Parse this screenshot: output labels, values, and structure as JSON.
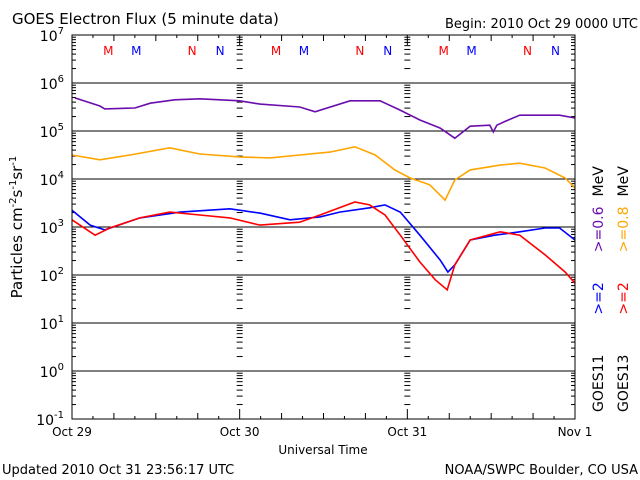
{
  "chart_data": {
    "type": "line",
    "title": "GOES Electron Flux (5 minute data)",
    "begin_label": "Begin: 2010 Oct 29 0000 UTC",
    "xlabel": "Universal Time",
    "ylabel": "Particles cm-2s-1sr-1",
    "ylabel_parts": {
      "base": "Particles cm",
      "e1": "-2",
      "s": "s",
      "e2": "-1",
      "sr": "sr",
      "e3": "-1"
    },
    "yscale": "log",
    "ylim_log10": [
      -1,
      7
    ],
    "y_ticks": [
      {
        "base": "10",
        "exp": "7"
      },
      {
        "base": "10",
        "exp": "6"
      },
      {
        "base": "10",
        "exp": "5"
      },
      {
        "base": "10",
        "exp": "4"
      },
      {
        "base": "10",
        "exp": "3"
      },
      {
        "base": "10",
        "exp": "2"
      },
      {
        "base": "10",
        "exp": "1"
      },
      {
        "base": "10",
        "exp": "0"
      },
      {
        "base": "10",
        "exp": "-1"
      }
    ],
    "xlim_hours": [
      0,
      72
    ],
    "x_ticks": [
      {
        "label": "Oct 29",
        "hour": 0
      },
      {
        "label": "Oct 30",
        "hour": 24
      },
      {
        "label": "Oct 31",
        "hour": 48
      },
      {
        "label": "Nov 1",
        "hour": 72
      }
    ],
    "threshold_log10": 3,
    "markers": [
      {
        "label": "M",
        "hour": 5.2,
        "color": "#ff0000"
      },
      {
        "label": "M",
        "hour": 9.2,
        "color": "#0000ff"
      },
      {
        "label": "N",
        "hour": 17.2,
        "color": "#ff0000"
      },
      {
        "label": "N",
        "hour": 21.2,
        "color": "#0000ff"
      },
      {
        "label": "M",
        "hour": 29.2,
        "color": "#ff0000"
      },
      {
        "label": "M",
        "hour": 33.2,
        "color": "#0000ff"
      },
      {
        "label": "N",
        "hour": 41.2,
        "color": "#ff0000"
      },
      {
        "label": "N",
        "hour": 45.2,
        "color": "#0000ff"
      },
      {
        "label": "M",
        "hour": 53.2,
        "color": "#ff0000"
      },
      {
        "label": "M",
        "hour": 57.2,
        "color": "#0000ff"
      },
      {
        "label": "N",
        "hour": 65.2,
        "color": "#ff0000"
      },
      {
        "label": "N",
        "hour": 69.2,
        "color": "#0000ff"
      }
    ],
    "series": [
      {
        "name": "GOES11 >=0.6 MeV",
        "satellite": "GOES11",
        "energy": ">=0.6",
        "color": "#6a0dad",
        "points": [
          [
            0.4,
            5.69
          ],
          [
            4.0,
            5.52
          ],
          [
            4.7,
            5.46
          ],
          [
            9.0,
            5.48
          ],
          [
            11.2,
            5.58
          ],
          [
            14.7,
            5.65
          ],
          [
            18.3,
            5.67
          ],
          [
            24,
            5.63
          ],
          [
            26.9,
            5.56
          ],
          [
            32.6,
            5.5
          ],
          [
            34.8,
            5.4
          ],
          [
            39.8,
            5.63
          ],
          [
            44.1,
            5.63
          ],
          [
            46.9,
            5.44
          ],
          [
            49.8,
            5.23
          ],
          [
            52.7,
            5.06
          ],
          [
            54.8,
            4.85
          ],
          [
            57.0,
            5.1
          ],
          [
            59.8,
            5.12
          ],
          [
            60.3,
            4.98
          ],
          [
            60.8,
            5.12
          ],
          [
            62,
            5.2
          ],
          [
            64.1,
            5.33
          ],
          [
            69.8,
            5.33
          ],
          [
            72,
            5.27
          ]
        ]
      },
      {
        "name": "GOES13 >=0.8 MeV",
        "satellite": "GOES13",
        "energy": ">=0.8",
        "color": "#ffa500",
        "points": [
          [
            0,
            4.5
          ],
          [
            4.0,
            4.4
          ],
          [
            8.3,
            4.5
          ],
          [
            14.0,
            4.65
          ],
          [
            18.3,
            4.52
          ],
          [
            24,
            4.46
          ],
          [
            28.3,
            4.44
          ],
          [
            32.6,
            4.5
          ],
          [
            36.9,
            4.56
          ],
          [
            40.5,
            4.67
          ],
          [
            43.4,
            4.5
          ],
          [
            46.2,
            4.19
          ],
          [
            48.4,
            4.02
          ],
          [
            51.2,
            3.88
          ],
          [
            53.4,
            3.56
          ],
          [
            54.8,
            3.98
          ],
          [
            57.0,
            4.19
          ],
          [
            61.3,
            4.29
          ],
          [
            64.1,
            4.33
          ],
          [
            67.7,
            4.23
          ],
          [
            70.6,
            4.02
          ],
          [
            72,
            3.81
          ]
        ]
      },
      {
        "name": "GOES11 >=2 MeV",
        "satellite": "GOES11",
        "energy": ">=2",
        "color": "#0000ff",
        "points": [
          [
            0,
            3.35
          ],
          [
            2.6,
            3.04
          ],
          [
            4.7,
            2.94
          ],
          [
            9.7,
            3.19
          ],
          [
            15.5,
            3.31
          ],
          [
            22.6,
            3.38
          ],
          [
            26.9,
            3.29
          ],
          [
            31.2,
            3.15
          ],
          [
            35.5,
            3.21
          ],
          [
            38.3,
            3.31
          ],
          [
            42.6,
            3.4
          ],
          [
            44.8,
            3.46
          ],
          [
            47.0,
            3.31
          ],
          [
            49.8,
            2.83
          ],
          [
            52.7,
            2.31
          ],
          [
            53.8,
            2.06
          ],
          [
            54.8,
            2.21
          ],
          [
            57.0,
            2.73
          ],
          [
            60.5,
            2.83
          ],
          [
            64.1,
            2.9
          ],
          [
            67.7,
            2.98
          ],
          [
            69.8,
            2.98
          ],
          [
            72,
            2.73
          ]
        ]
      },
      {
        "name": "GOES13 >=2 MeV",
        "satellite": "GOES13",
        "energy": ">=2",
        "color": "#ff0000",
        "points": [
          [
            0,
            3.15
          ],
          [
            3.3,
            2.83
          ],
          [
            5.4,
            2.98
          ],
          [
            9.7,
            3.19
          ],
          [
            14.0,
            3.31
          ],
          [
            18.3,
            3.25
          ],
          [
            22.6,
            3.19
          ],
          [
            26.9,
            3.04
          ],
          [
            32.6,
            3.1
          ],
          [
            35.5,
            3.25
          ],
          [
            40.5,
            3.52
          ],
          [
            42.6,
            3.46
          ],
          [
            44.8,
            3.25
          ],
          [
            47.0,
            2.83
          ],
          [
            49.8,
            2.27
          ],
          [
            52.0,
            1.9
          ],
          [
            53.7,
            1.69
          ],
          [
            54.8,
            2.21
          ],
          [
            57.0,
            2.73
          ],
          [
            61.3,
            2.9
          ],
          [
            64.1,
            2.83
          ],
          [
            67.7,
            2.42
          ],
          [
            70.6,
            2.06
          ],
          [
            72,
            1.83
          ]
        ]
      }
    ],
    "legend": {
      "placement": "right",
      "mev": "MeV",
      "rows": [
        {
          "sat": "GOES11",
          "low": ">=2",
          "high": ">=0.6"
        },
        {
          "sat": "GOES13",
          "low": ">=2",
          "high": ">=0.8"
        }
      ]
    }
  },
  "footer": {
    "updated": "Updated 2010 Oct 31 23:56:17 UTC",
    "source": "NOAA/SWPC Boulder, CO USA"
  }
}
